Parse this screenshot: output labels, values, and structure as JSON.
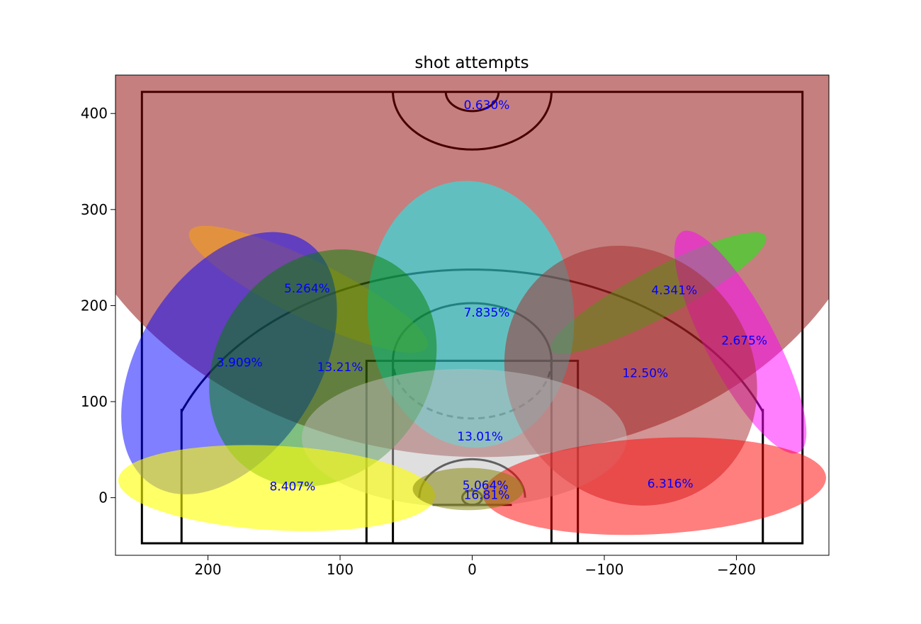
{
  "chart_data": {
    "type": "scatter",
    "title": "shot attempts",
    "xlabel": "",
    "ylabel": "",
    "xlim": [
      270,
      -270
    ],
    "ylim": [
      -60,
      440
    ],
    "x_ticks": [
      200,
      100,
      0,
      -100,
      -200
    ],
    "x_tick_labels": [
      "200",
      "100",
      "0",
      "−100",
      "−200"
    ],
    "y_ticks": [
      0,
      100,
      200,
      300,
      400
    ],
    "y_tick_labels": [
      "0",
      "100",
      "200",
      "300",
      "400"
    ],
    "grid": false,
    "zones": [
      {
        "label": "0.630%",
        "value": 0.63,
        "label_x": -11,
        "label_y": 409,
        "cx": 5,
        "cy": 395,
        "width": 318,
        "height": 352,
        "angle": 5,
        "color": "#8b0000",
        "alpha": 0.5
      },
      {
        "label": "5.264%",
        "value": 5.264,
        "label_x": 125,
        "label_y": 218,
        "cx": 124,
        "cy": 217,
        "width": 100,
        "height": 30,
        "angle": 26,
        "color": "#ffa500",
        "alpha": 0.5
      },
      {
        "label": "4.341%",
        "value": 4.341,
        "label_x": -153,
        "label_y": 216,
        "cx": -141,
        "cy": 213,
        "width": 92,
        "height": 25,
        "angle": -28,
        "color": "#00ff00",
        "alpha": 0.5
      },
      {
        "label": "7.835%",
        "value": 7.835,
        "label_x": -11,
        "label_y": 193,
        "cx": 1,
        "cy": 191,
        "width": 78,
        "height": 139,
        "angle": -5,
        "color": "#00ffff",
        "alpha": 0.5
      },
      {
        "label": "2.675%",
        "value": 2.675,
        "label_x": -206,
        "label_y": 164,
        "cx": -203,
        "cy": 162,
        "width": 26,
        "height": 130,
        "angle": -28,
        "color": "#ff00ff",
        "alpha": 0.5
      },
      {
        "label": "3.909%",
        "value": 3.909,
        "label_x": 176,
        "label_y": 141,
        "cx": 184,
        "cy": 140,
        "width": 68,
        "height": 150,
        "angle": 32,
        "color": "#0000ff",
        "alpha": 0.5
      },
      {
        "label": "13.21%",
        "value": 13.21,
        "label_x": 100,
        "label_y": 136,
        "cx": 113,
        "cy": 135,
        "width": 80,
        "height": 131,
        "angle": 38,
        "color": "#008000",
        "alpha": 0.5
      },
      {
        "label": "12.50%",
        "value": 12.5,
        "label_x": -131,
        "label_y": 130,
        "cx": -120,
        "cy": 127,
        "width": 92,
        "height": 140,
        "angle": -37,
        "color": "#a52a2a",
        "alpha": 0.5
      },
      {
        "label": "13.01%",
        "value": 13.01,
        "label_x": -6,
        "label_y": 64,
        "cx": 6,
        "cy": 62,
        "width": 123,
        "height": 72,
        "angle": 0,
        "color": "#c0c0c0",
        "alpha": 0.5
      },
      {
        "label": "8.407%",
        "value": 8.407,
        "label_x": 136,
        "label_y": 12,
        "cx": 148,
        "cy": 10,
        "width": 120,
        "height": 44,
        "angle": 3,
        "color": "#ffff00",
        "alpha": 0.6
      },
      {
        "label": "6.316%",
        "value": 6.316,
        "label_x": -150,
        "label_y": 15,
        "cx": -138,
        "cy": 12,
        "width": 130,
        "height": 50,
        "angle": -3,
        "color": "#ff0000",
        "alpha": 0.5
      },
      {
        "label": "5.064%",
        "value": 5.064,
        "label_x": -10,
        "label_y": 13,
        "cx": 3,
        "cy": 9,
        "width": 42,
        "height": 22,
        "angle": 0,
        "color": "#808000",
        "alpha": 0.5
      },
      {
        "label": "16.81%",
        "value": 16.81,
        "label_x": -11,
        "label_y": 3,
        "cx": 0,
        "cy": 0,
        "width": 0,
        "height": 0,
        "angle": 0,
        "color": "#808000",
        "alpha": 0.0
      }
    ],
    "label_color": "#0000ff",
    "court_line_color": "#000000"
  }
}
